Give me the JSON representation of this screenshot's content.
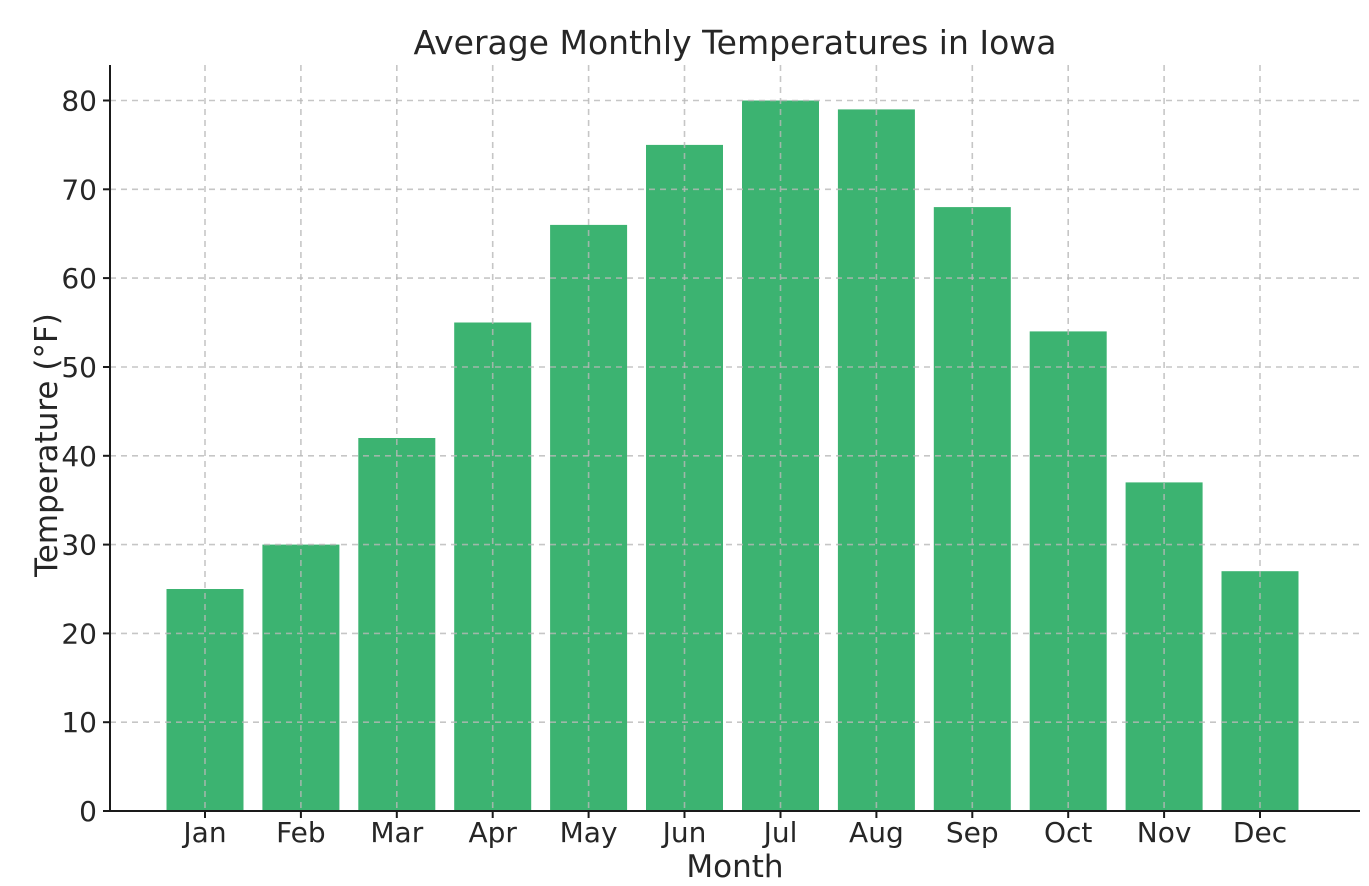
{
  "chart_data": {
    "type": "bar",
    "title": "Average Monthly Temperatures in Iowa",
    "xlabel": "Month",
    "ylabel": "Temperature (°F)",
    "categories": [
      "Jan",
      "Feb",
      "Mar",
      "Apr",
      "May",
      "Jun",
      "Jul",
      "Aug",
      "Sep",
      "Oct",
      "Nov",
      "Dec"
    ],
    "values": [
      25,
      30,
      42,
      55,
      66,
      75,
      80,
      79,
      68,
      54,
      37,
      27
    ],
    "yticks": [
      0,
      10,
      20,
      30,
      40,
      50,
      60,
      70,
      80
    ],
    "ylim": [
      0,
      84
    ],
    "grid": {
      "visible": true,
      "style": "dashed",
      "on_top_of_bars": true
    },
    "legend": "none",
    "spines": [
      "left",
      "bottom"
    ],
    "colors": {
      "bar": "#3CB371",
      "grid": "#b8b8b8",
      "text": "#262626",
      "spine": "#1a1a1a",
      "background": "#ffffff"
    }
  }
}
